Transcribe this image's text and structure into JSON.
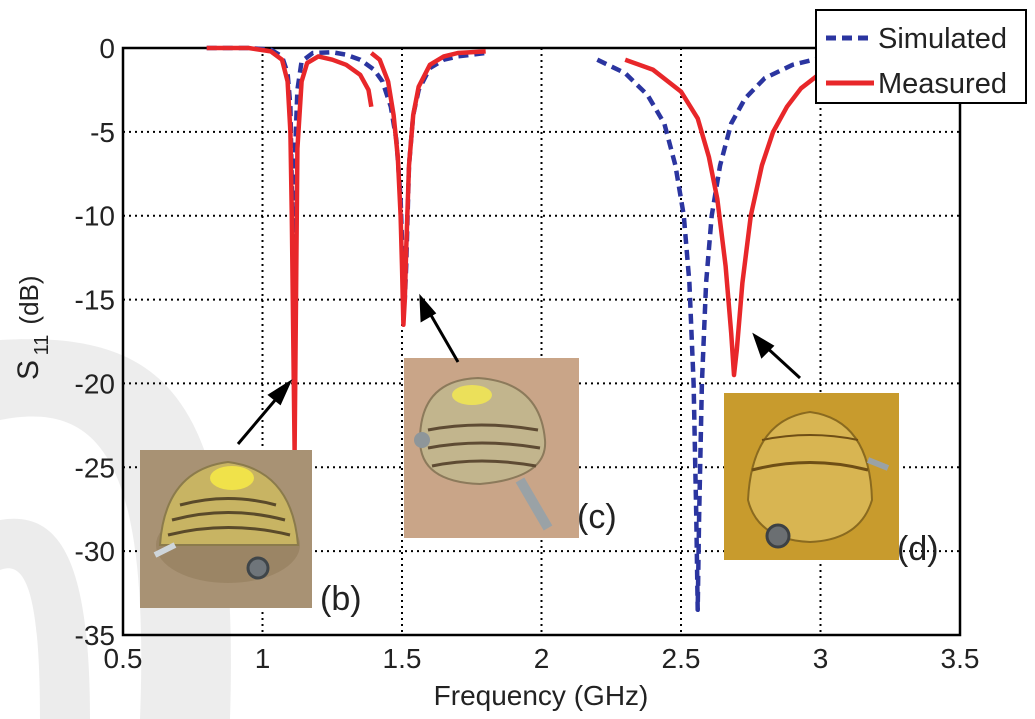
{
  "chart_data": {
    "type": "line",
    "xlabel": "Frequency (GHz)",
    "ylabel_main": "S",
    "ylabel_sub": "11",
    "ylabel_unit": "(dB)",
    "xlim": [
      0.5,
      3.5
    ],
    "ylim": [
      -35,
      0
    ],
    "xticks": [
      0.5,
      1,
      1.5,
      2,
      2.5,
      3,
      3.5
    ],
    "xtick_labels": [
      "0.5",
      "1",
      "1.5",
      "2",
      "2.5",
      "3",
      "3.5"
    ],
    "yticks": [
      0,
      -5,
      -10,
      -15,
      -20,
      -25,
      -30,
      -35
    ],
    "ytick_labels": [
      "0",
      "-5",
      "-10",
      "-15",
      "-20",
      "-25",
      "-30",
      "-35"
    ],
    "grid": true,
    "grid_style": "dotted",
    "legend_position": "top-right",
    "series": [
      {
        "name": "Simulated",
        "color": "#2b35a0",
        "dash": "dashed",
        "segments": [
          [
            [
              0.8,
              0
            ],
            [
              0.95,
              0
            ],
            [
              1.03,
              -0.1
            ],
            [
              1.07,
              -0.5
            ],
            [
              1.09,
              -1.5
            ],
            [
              1.1,
              -3.5
            ],
            [
              1.105,
              -8
            ],
            [
              1.11,
              -12
            ],
            [
              1.115,
              -7
            ],
            [
              1.125,
              -2.5
            ],
            [
              1.14,
              -0.8
            ],
            [
              1.18,
              -0.3
            ],
            [
              1.25,
              -0.25
            ],
            [
              1.3,
              -0.4
            ],
            [
              1.35,
              -0.7
            ],
            [
              1.4,
              -1.3
            ],
            [
              1.43,
              -2
            ],
            [
              1.46,
              -3.5
            ],
            [
              1.48,
              -5.5
            ],
            [
              1.495,
              -9
            ],
            [
              1.505,
              -14
            ],
            [
              1.51,
              -15
            ],
            [
              1.515,
              -13
            ],
            [
              1.525,
              -7
            ],
            [
              1.54,
              -4
            ],
            [
              1.56,
              -2.5
            ],
            [
              1.6,
              -1.2
            ],
            [
              1.65,
              -0.7
            ],
            [
              1.7,
              -0.5
            ],
            [
              1.8,
              -0.3
            ]
          ],
          [
            [
              2.2,
              -0.7
            ],
            [
              2.3,
              -1.5
            ],
            [
              2.38,
              -2.8
            ],
            [
              2.44,
              -4.5
            ],
            [
              2.48,
              -7
            ],
            [
              2.51,
              -10
            ],
            [
              2.53,
              -14
            ],
            [
              2.545,
              -20
            ],
            [
              2.555,
              -28
            ],
            [
              2.56,
              -33.5
            ],
            [
              2.565,
              -28
            ],
            [
              2.575,
              -20
            ],
            [
              2.59,
              -14
            ],
            [
              2.61,
              -10
            ],
            [
              2.64,
              -7
            ],
            [
              2.68,
              -4.5
            ],
            [
              2.73,
              -3
            ],
            [
              2.8,
              -1.8
            ],
            [
              2.9,
              -1
            ],
            [
              3.0,
              -0.6
            ],
            [
              3.05,
              -0.5
            ]
          ]
        ]
      },
      {
        "name": "Measured",
        "color": "#e8272a",
        "dash": "solid",
        "segments": [
          [
            [
              0.8,
              0
            ],
            [
              0.95,
              0
            ],
            [
              1.03,
              -0.2
            ],
            [
              1.07,
              -0.7
            ],
            [
              1.09,
              -2
            ],
            [
              1.1,
              -5
            ],
            [
              1.105,
              -10
            ],
            [
              1.11,
              -17
            ],
            [
              1.115,
              -24
            ],
            [
              1.12,
              -15
            ],
            [
              1.125,
              -6
            ],
            [
              1.14,
              -2
            ],
            [
              1.16,
              -0.9
            ],
            [
              1.2,
              -0.5
            ],
            [
              1.25,
              -0.7
            ],
            [
              1.3,
              -1
            ],
            [
              1.35,
              -1.6
            ],
            [
              1.38,
              -2.5
            ],
            [
              1.39,
              -3.5
            ]
          ],
          [
            [
              1.39,
              -0.3
            ],
            [
              1.42,
              -0.7
            ],
            [
              1.45,
              -2
            ],
            [
              1.47,
              -4
            ],
            [
              1.485,
              -6.5
            ],
            [
              1.495,
              -10
            ],
            [
              1.5,
              -13
            ],
            [
              1.505,
              -16.5
            ],
            [
              1.51,
              -15
            ],
            [
              1.515,
              -12
            ],
            [
              1.525,
              -7
            ],
            [
              1.54,
              -4
            ],
            [
              1.56,
              -2.3
            ],
            [
              1.6,
              -1
            ],
            [
              1.65,
              -0.5
            ],
            [
              1.7,
              -0.3
            ],
            [
              1.8,
              -0.2
            ]
          ],
          [
            [
              2.3,
              -0.7
            ],
            [
              2.4,
              -1.3
            ],
            [
              2.5,
              -2.6
            ],
            [
              2.56,
              -4.2
            ],
            [
              2.6,
              -6.5
            ],
            [
              2.63,
              -9
            ],
            [
              2.66,
              -13
            ],
            [
              2.68,
              -17
            ],
            [
              2.69,
              -19.5
            ],
            [
              2.7,
              -18
            ],
            [
              2.72,
              -14
            ],
            [
              2.75,
              -10
            ],
            [
              2.79,
              -7
            ],
            [
              2.83,
              -5
            ],
            [
              2.88,
              -3.5
            ],
            [
              2.93,
              -2.4
            ],
            [
              3.0,
              -1.5
            ],
            [
              3.05,
              -1.1
            ],
            [
              3.1,
              -0.8
            ]
          ]
        ]
      }
    ],
    "annotations": [
      {
        "label": "(b)"
      },
      {
        "label": "(c)"
      },
      {
        "label": "(d)"
      }
    ]
  },
  "images": [
    {
      "name": "antenna-photo-b",
      "bg": "#a08a6a",
      "body": "#c8b060"
    },
    {
      "name": "antenna-photo-c",
      "bg": "#c9a183",
      "body": "#bfb58e"
    },
    {
      "name": "antenna-photo-d",
      "bg": "#c79a2c",
      "body": "#d9bb58"
    }
  ]
}
